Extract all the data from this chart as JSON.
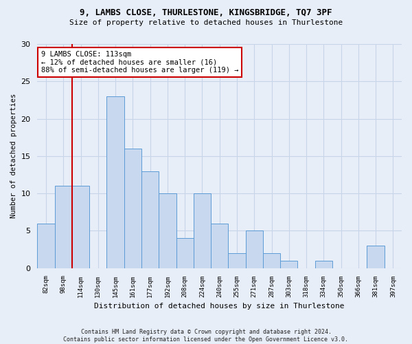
{
  "title1": "9, LAMBS CLOSE, THURLESTONE, KINGSBRIDGE, TQ7 3PF",
  "title2": "Size of property relative to detached houses in Thurlestone",
  "xlabel": "Distribution of detached houses by size in Thurlestone",
  "ylabel": "Number of detached properties",
  "categories": [
    "82sqm",
    "98sqm",
    "114sqm",
    "130sqm",
    "145sqm",
    "161sqm",
    "177sqm",
    "192sqm",
    "208sqm",
    "224sqm",
    "240sqm",
    "255sqm",
    "271sqm",
    "287sqm",
    "303sqm",
    "318sqm",
    "334sqm",
    "350sqm",
    "366sqm",
    "381sqm",
    "397sqm"
  ],
  "values": [
    6,
    11,
    11,
    0,
    23,
    16,
    13,
    10,
    4,
    10,
    6,
    2,
    5,
    2,
    1,
    0,
    1,
    0,
    0,
    3,
    0
  ],
  "bar_color": "#c8d8ef",
  "bar_edge_color": "#5b9bd5",
  "vline_color": "#cc0000",
  "vline_index": 1.5,
  "annotation_text": "9 LAMBS CLOSE: 113sqm\n← 12% of detached houses are smaller (16)\n88% of semi-detached houses are larger (119) →",
  "annotation_box_color": "#ffffff",
  "annotation_box_edge_color": "#cc0000",
  "ylim": [
    0,
    30
  ],
  "yticks": [
    0,
    5,
    10,
    15,
    20,
    25,
    30
  ],
  "footer": "Contains HM Land Registry data © Crown copyright and database right 2024.\nContains public sector information licensed under the Open Government Licence v3.0.",
  "bg_color": "#e8eef8",
  "grid_color": "#c8d4e8"
}
